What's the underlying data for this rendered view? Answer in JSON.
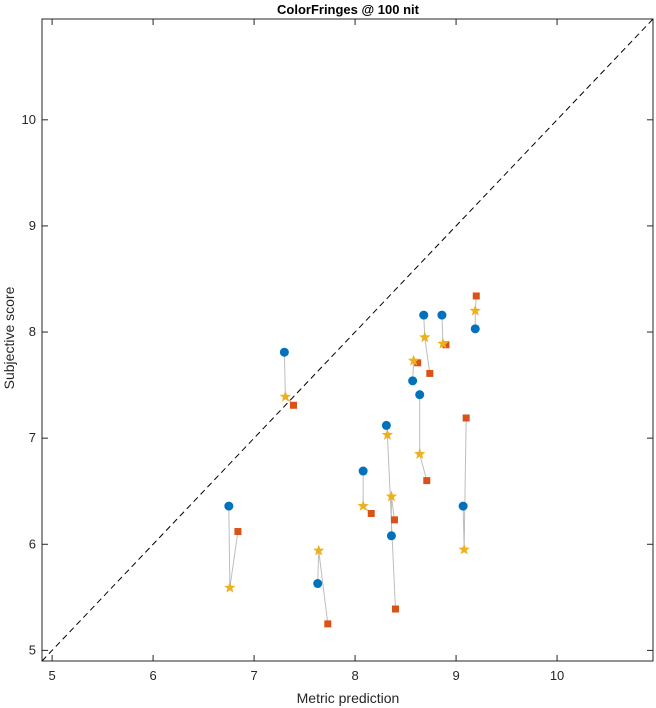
{
  "chart_data": {
    "type": "scatter",
    "title": "ColorFringes @ 100 nit",
    "xlabel": "Metric prediction",
    "ylabel": "Subjective score",
    "xlim": [
      4.9,
      10.95
    ],
    "ylim": [
      4.9,
      10.95
    ],
    "x_ticks": [
      "5",
      "6",
      "7",
      "8",
      "9",
      "10"
    ],
    "y_ticks": [
      "5",
      "6",
      "7",
      "8",
      "9",
      "10"
    ],
    "grid": false,
    "reference_line": "y = x (dashed)",
    "colors": {
      "circle": "#0072BD",
      "square": "#D95319",
      "star": "#EDB120",
      "connector": "#bdbdbd",
      "reference": "#000000"
    },
    "groups": [
      {
        "circle": [
          6.75,
          6.36
        ],
        "star": [
          6.76,
          5.59
        ],
        "square": [
          6.84,
          6.12
        ]
      },
      {
        "circle": [
          7.3,
          7.81
        ],
        "star": [
          7.31,
          7.39
        ],
        "square": [
          7.39,
          7.31
        ]
      },
      {
        "circle": [
          7.63,
          5.63
        ],
        "star": [
          7.64,
          5.94
        ],
        "square": [
          7.73,
          5.25
        ]
      },
      {
        "circle": [
          8.08,
          6.69
        ],
        "star": [
          8.08,
          6.36
        ],
        "square": [
          8.16,
          6.29
        ]
      },
      {
        "circle": [
          8.31,
          7.12
        ],
        "star": [
          8.32,
          7.03
        ],
        "square": [
          8.4,
          5.39
        ]
      },
      {
        "circle": [
          8.36,
          6.08
        ],
        "star": [
          8.36,
          6.45
        ],
        "square": [
          8.39,
          6.23
        ]
      },
      {
        "circle": [
          8.57,
          7.54
        ],
        "star": [
          8.58,
          7.73
        ],
        "square": [
          8.62,
          7.71
        ]
      },
      {
        "circle": [
          8.64,
          7.41
        ],
        "star": [
          8.64,
          6.85
        ],
        "square": [
          8.71,
          6.6
        ]
      },
      {
        "circle": [
          8.68,
          8.16
        ],
        "star": [
          8.69,
          7.95
        ],
        "square": [
          8.74,
          7.61
        ]
      },
      {
        "circle": [
          8.86,
          8.16
        ],
        "star": [
          8.87,
          7.89
        ],
        "square": [
          8.9,
          7.88
        ]
      },
      {
        "circle": [
          9.07,
          6.36
        ],
        "star": [
          9.08,
          5.95
        ],
        "square": [
          9.1,
          7.19
        ]
      },
      {
        "circle": [
          9.19,
          8.03
        ],
        "star": [
          9.19,
          8.2
        ],
        "square": [
          9.2,
          8.34
        ]
      }
    ]
  }
}
